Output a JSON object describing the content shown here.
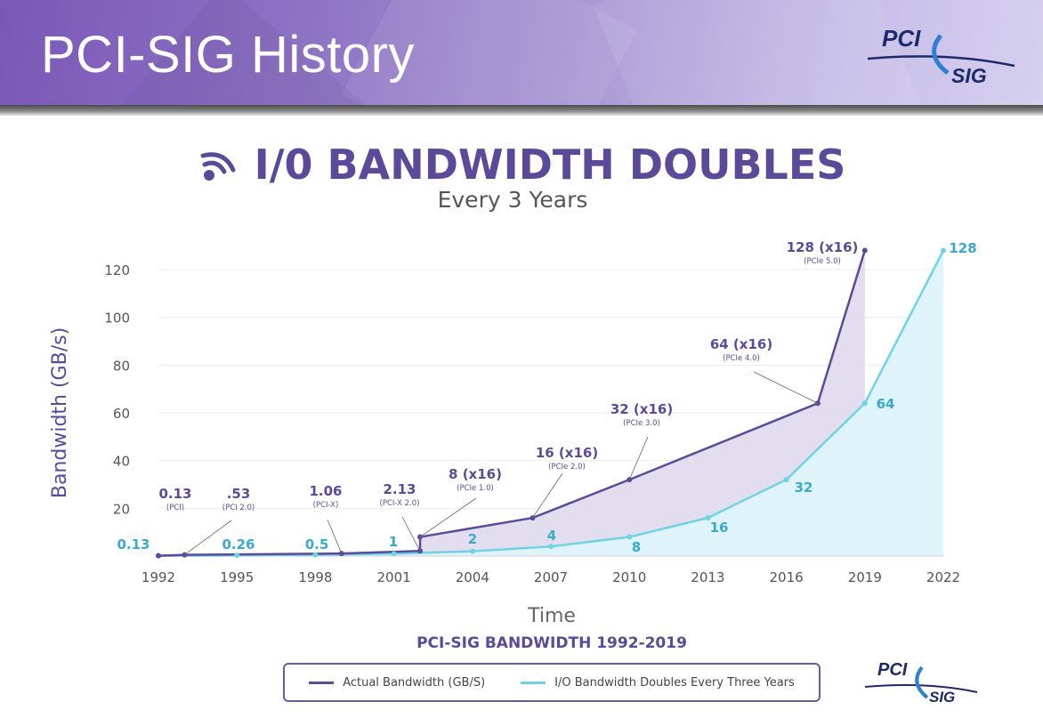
{
  "header": {
    "title": "PCI-SIG History",
    "logo_line1": "PCI",
    "logo_line2": "SIG"
  },
  "colors": {
    "banner": "#8e73c4",
    "actual": "#5d4b9a",
    "actual_fill": "#ddd8ec",
    "doubling": "#6fd3e6",
    "doubling_fill": "#dff3fa",
    "label_blue": "#38a9cf"
  },
  "footer_logo": {
    "line1": "PCI",
    "line2": "SIG"
  },
  "chart_data": {
    "type": "line",
    "title": "I/0 BANDWIDTH DOUBLES",
    "subtitle": "Every 3 Years",
    "caption": "PCI-SIG BANDWIDTH 1992-2019",
    "xlabel": "Time",
    "ylabel": "Bandwidth (GB/s)",
    "ylim": [
      0,
      130
    ],
    "yticks": [
      20,
      40,
      60,
      80,
      100,
      120
    ],
    "xticks": [
      1992,
      1995,
      1998,
      2001,
      2004,
      2007,
      2010,
      2013,
      2016,
      2019,
      2022
    ],
    "xlim": [
      1992,
      2022
    ],
    "grid": true,
    "legend_position": "bottom",
    "series": [
      {
        "name": "Actual Bandwidth (GB/S)",
        "points": [
          {
            "x": 1992,
            "y": 0.13
          },
          {
            "x": 1993,
            "y": 0.53
          },
          {
            "x": 1999,
            "y": 1.06
          },
          {
            "x": 2002,
            "y": 2.13
          },
          {
            "x": 2002,
            "y": 8
          },
          {
            "x": 2006.3,
            "y": 16
          },
          {
            "x": 2010,
            "y": 32
          },
          {
            "x": 2017.2,
            "y": 64
          },
          {
            "x": 2019,
            "y": 128
          }
        ]
      },
      {
        "name": "I/O Bandwidth Doubles Every Three Years",
        "points": [
          {
            "x": 1992,
            "y": 0.13
          },
          {
            "x": 1995,
            "y": 0.26
          },
          {
            "x": 1998,
            "y": 0.5
          },
          {
            "x": 2001,
            "y": 1
          },
          {
            "x": 2004,
            "y": 2
          },
          {
            "x": 2007,
            "y": 4
          },
          {
            "x": 2010,
            "y": 8
          },
          {
            "x": 2013,
            "y": 16
          },
          {
            "x": 2016,
            "y": 32
          },
          {
            "x": 2019,
            "y": 64
          },
          {
            "x": 2022,
            "y": 128
          }
        ]
      }
    ],
    "actual_labels": [
      {
        "value": "0.13",
        "spec": "(PCI)",
        "x": 1993,
        "y": 0.53
      },
      {
        "value": ".53",
        "spec": "(PCI 2.0)",
        "x": 1993,
        "y": 0.53
      },
      {
        "value": "1.06",
        "spec": "(PCI-X)",
        "x": 1999,
        "y": 1.06
      },
      {
        "value": "2.13",
        "spec": "(PCI-X 2.0)",
        "x": 2002,
        "y": 2.13
      },
      {
        "value": "8 (x16)",
        "spec": "(PCIe 1.0)",
        "x": 2002,
        "y": 8
      },
      {
        "value": "16 (x16)",
        "spec": "(PCIe 2.0)",
        "x": 2006.3,
        "y": 16
      },
      {
        "value": "32 (x16)",
        "spec": "(PCIe 3.0)",
        "x": 2010,
        "y": 32
      },
      {
        "value": "64 (x16)",
        "spec": "(PCIe 4.0)",
        "x": 2017.2,
        "y": 64
      },
      {
        "value": "128 (x16)",
        "spec": "(PCIe 5.0)",
        "x": 2019,
        "y": 128
      }
    ],
    "doubling_labels": [
      "0.13",
      "0.26",
      "0.5",
      "1",
      "2",
      "4",
      "8",
      "16",
      "32",
      "64",
      "128"
    ]
  }
}
